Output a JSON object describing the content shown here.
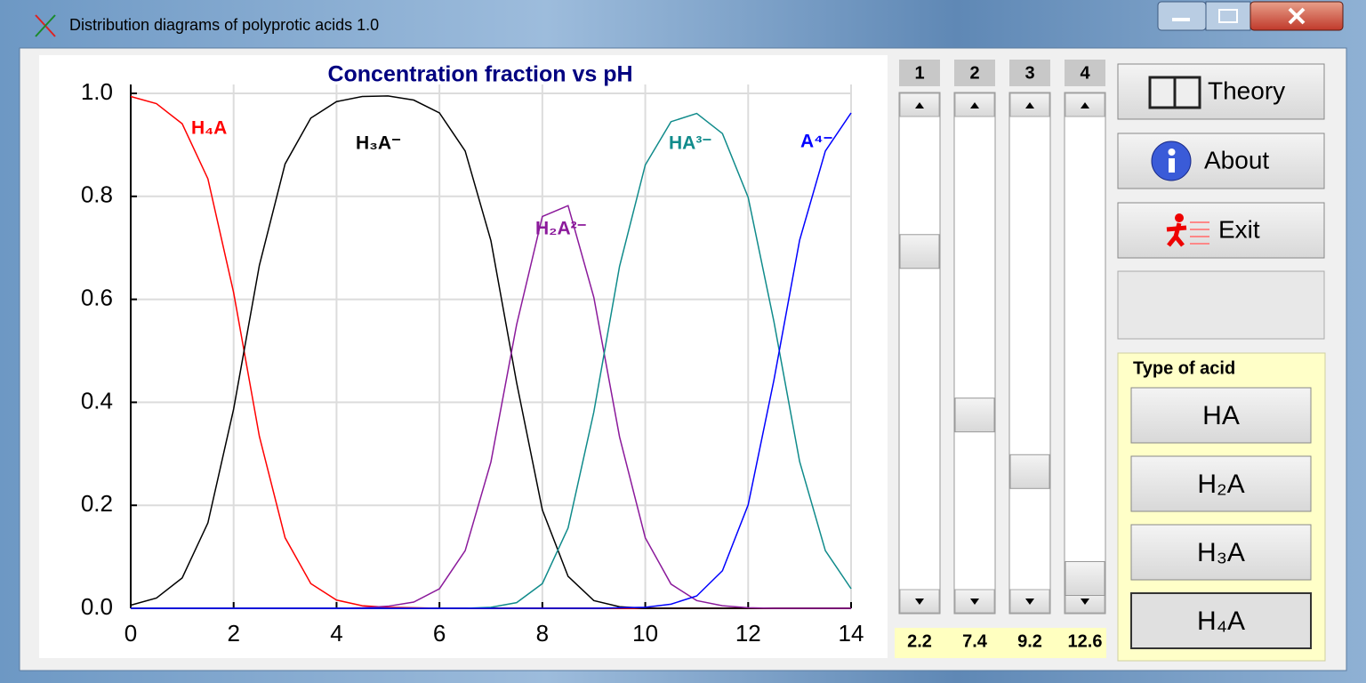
{
  "window": {
    "title": "Distribution diagrams of polyprotic acids  1.0"
  },
  "chart_data": {
    "type": "line",
    "title": "Concentration fraction vs pH",
    "x": [
      0,
      0.5,
      1,
      1.5,
      2,
      2.5,
      3,
      3.5,
      4,
      4.5,
      5,
      5.5,
      6,
      6.5,
      7,
      7.5,
      8,
      8.5,
      9,
      9.5,
      10,
      10.5,
      11,
      11.5,
      12,
      12.5,
      13,
      13.5,
      14
    ],
    "series": [
      {
        "name": "H₄A",
        "color": "#ff0000",
        "values": [
          0.994,
          0.98,
          0.941,
          0.834,
          0.613,
          0.334,
          0.137,
          0.048,
          0.016,
          0.005,
          0.002,
          0.001,
          0,
          0,
          0,
          0,
          0,
          0,
          0,
          0,
          0,
          0,
          0,
          0,
          0,
          0,
          0,
          0,
          0
        ]
      },
      {
        "name": "H₃A⁻",
        "color": "#000000",
        "values": [
          0.006,
          0.02,
          0.059,
          0.166,
          0.387,
          0.666,
          0.863,
          0.952,
          0.984,
          0.994,
          0.995,
          0.987,
          0.962,
          0.888,
          0.714,
          0.438,
          0.191,
          0.062,
          0.015,
          0.003,
          0,
          0,
          0,
          0,
          0,
          0,
          0,
          0,
          0
        ]
      },
      {
        "name": "H₂A²⁻",
        "color": "#8b1a9b",
        "values": [
          0,
          0,
          0,
          0,
          0,
          0,
          0,
          0,
          0,
          0.001,
          0.004,
          0.012,
          0.038,
          0.112,
          0.284,
          0.551,
          0.761,
          0.782,
          0.604,
          0.333,
          0.137,
          0.047,
          0.015,
          0.005,
          0.001,
          0,
          0,
          0,
          0
        ]
      },
      {
        "name": "HA³⁻",
        "color": "#108b8b",
        "values": [
          0,
          0,
          0,
          0,
          0,
          0,
          0,
          0,
          0,
          0,
          0,
          0,
          0,
          0,
          0.002,
          0.011,
          0.048,
          0.156,
          0.381,
          0.664,
          0.861,
          0.945,
          0.961,
          0.922,
          0.798,
          0.557,
          0.285,
          0.112,
          0.038
        ]
      },
      {
        "name": "A⁴⁻",
        "color": "#0000ff",
        "values": [
          0,
          0,
          0,
          0,
          0,
          0,
          0,
          0,
          0,
          0,
          0,
          0,
          0,
          0,
          0,
          0,
          0,
          0,
          0,
          0.001,
          0.002,
          0.008,
          0.024,
          0.073,
          0.201,
          0.443,
          0.715,
          0.888,
          0.962
        ]
      }
    ],
    "xlim": [
      0,
      14
    ],
    "xticks": [
      0,
      2,
      4,
      6,
      8,
      10,
      12,
      14
    ],
    "ylim": [
      0,
      1
    ],
    "yticks": [
      {
        "value": 0,
        "label": "0.0"
      },
      {
        "value": 0.2,
        "label": "0.2"
      },
      {
        "value": 0.4,
        "label": "0.4"
      },
      {
        "value": 0.6,
        "label": "0.6"
      },
      {
        "value": 0.8,
        "label": "0.8"
      },
      {
        "value": 1,
        "label": "1.0"
      }
    ],
    "grid": true
  },
  "sliders": [
    {
      "label": "1",
      "value": 2.2
    },
    {
      "label": "2",
      "value": 7.4
    },
    {
      "label": "3",
      "value": 9.2
    },
    {
      "label": "4",
      "value": 12.6
    }
  ],
  "buttons": [
    "Theory",
    "About",
    "Exit"
  ],
  "acid_group": {
    "title": "Type of acid",
    "options": [
      "HA",
      "H₂A",
      "H₃A",
      "H₄A"
    ]
  }
}
